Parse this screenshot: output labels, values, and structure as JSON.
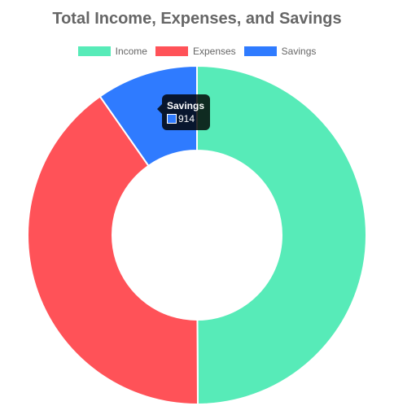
{
  "chart_data": {
    "type": "pie",
    "title": "Total Income, Expenses, and Savings",
    "categories": [
      "Income",
      "Expenses",
      "Savings"
    ],
    "values": [
      4700,
      3800,
      914
    ],
    "colors": [
      "#57ebb8",
      "#ff5258",
      "#2f7bff"
    ],
    "legend_position": "top",
    "donut": true
  },
  "tooltip": {
    "title": "Savings",
    "value": "914",
    "color": "#2f7bff"
  }
}
